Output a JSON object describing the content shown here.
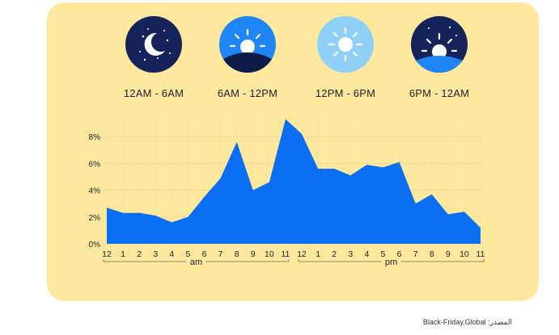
{
  "periods": [
    {
      "label": "12AM - 6AM",
      "icon": "moon-stars-icon",
      "bg": "#14245a"
    },
    {
      "label": "6AM - 12PM",
      "icon": "sunrise-icon",
      "bg": "#1e86f6"
    },
    {
      "label": "12PM - 6PM",
      "icon": "sun-icon",
      "bg": "#8fd0f8"
    },
    {
      "label": "6PM - 12AM",
      "icon": "sunset-icon",
      "bg": "#14245a"
    }
  ],
  "source": "المصدر: Black-Friday.Global",
  "colors": {
    "card": "#fde89d",
    "area": "#0a6ff2",
    "grid": "#c9c2a4",
    "text": "#1e1e2a"
  },
  "chart_data": {
    "type": "area",
    "x": [
      "12",
      "1",
      "2",
      "3",
      "4",
      "5",
      "6",
      "7",
      "8",
      "9",
      "10",
      "11",
      "12",
      "1",
      "2",
      "3",
      "4",
      "5",
      "6",
      "7",
      "8",
      "9",
      "10",
      "11"
    ],
    "values": [
      2.7,
      2.3,
      2.3,
      2.1,
      1.6,
      2.0,
      3.5,
      4.9,
      7.6,
      4.0,
      4.6,
      9.3,
      8.2,
      5.6,
      5.6,
      5.1,
      5.9,
      5.7,
      6.1,
      3.0,
      3.7,
      2.2,
      2.4,
      1.2
    ],
    "y_ticks": [
      "0%",
      "2%",
      "4%",
      "6%",
      "8%"
    ],
    "ylim": [
      0,
      9.5
    ],
    "groups": [
      {
        "label": "am",
        "from": 0,
        "to": 11
      },
      {
        "label": "pm",
        "from": 12,
        "to": 23
      }
    ],
    "grid": true
  }
}
